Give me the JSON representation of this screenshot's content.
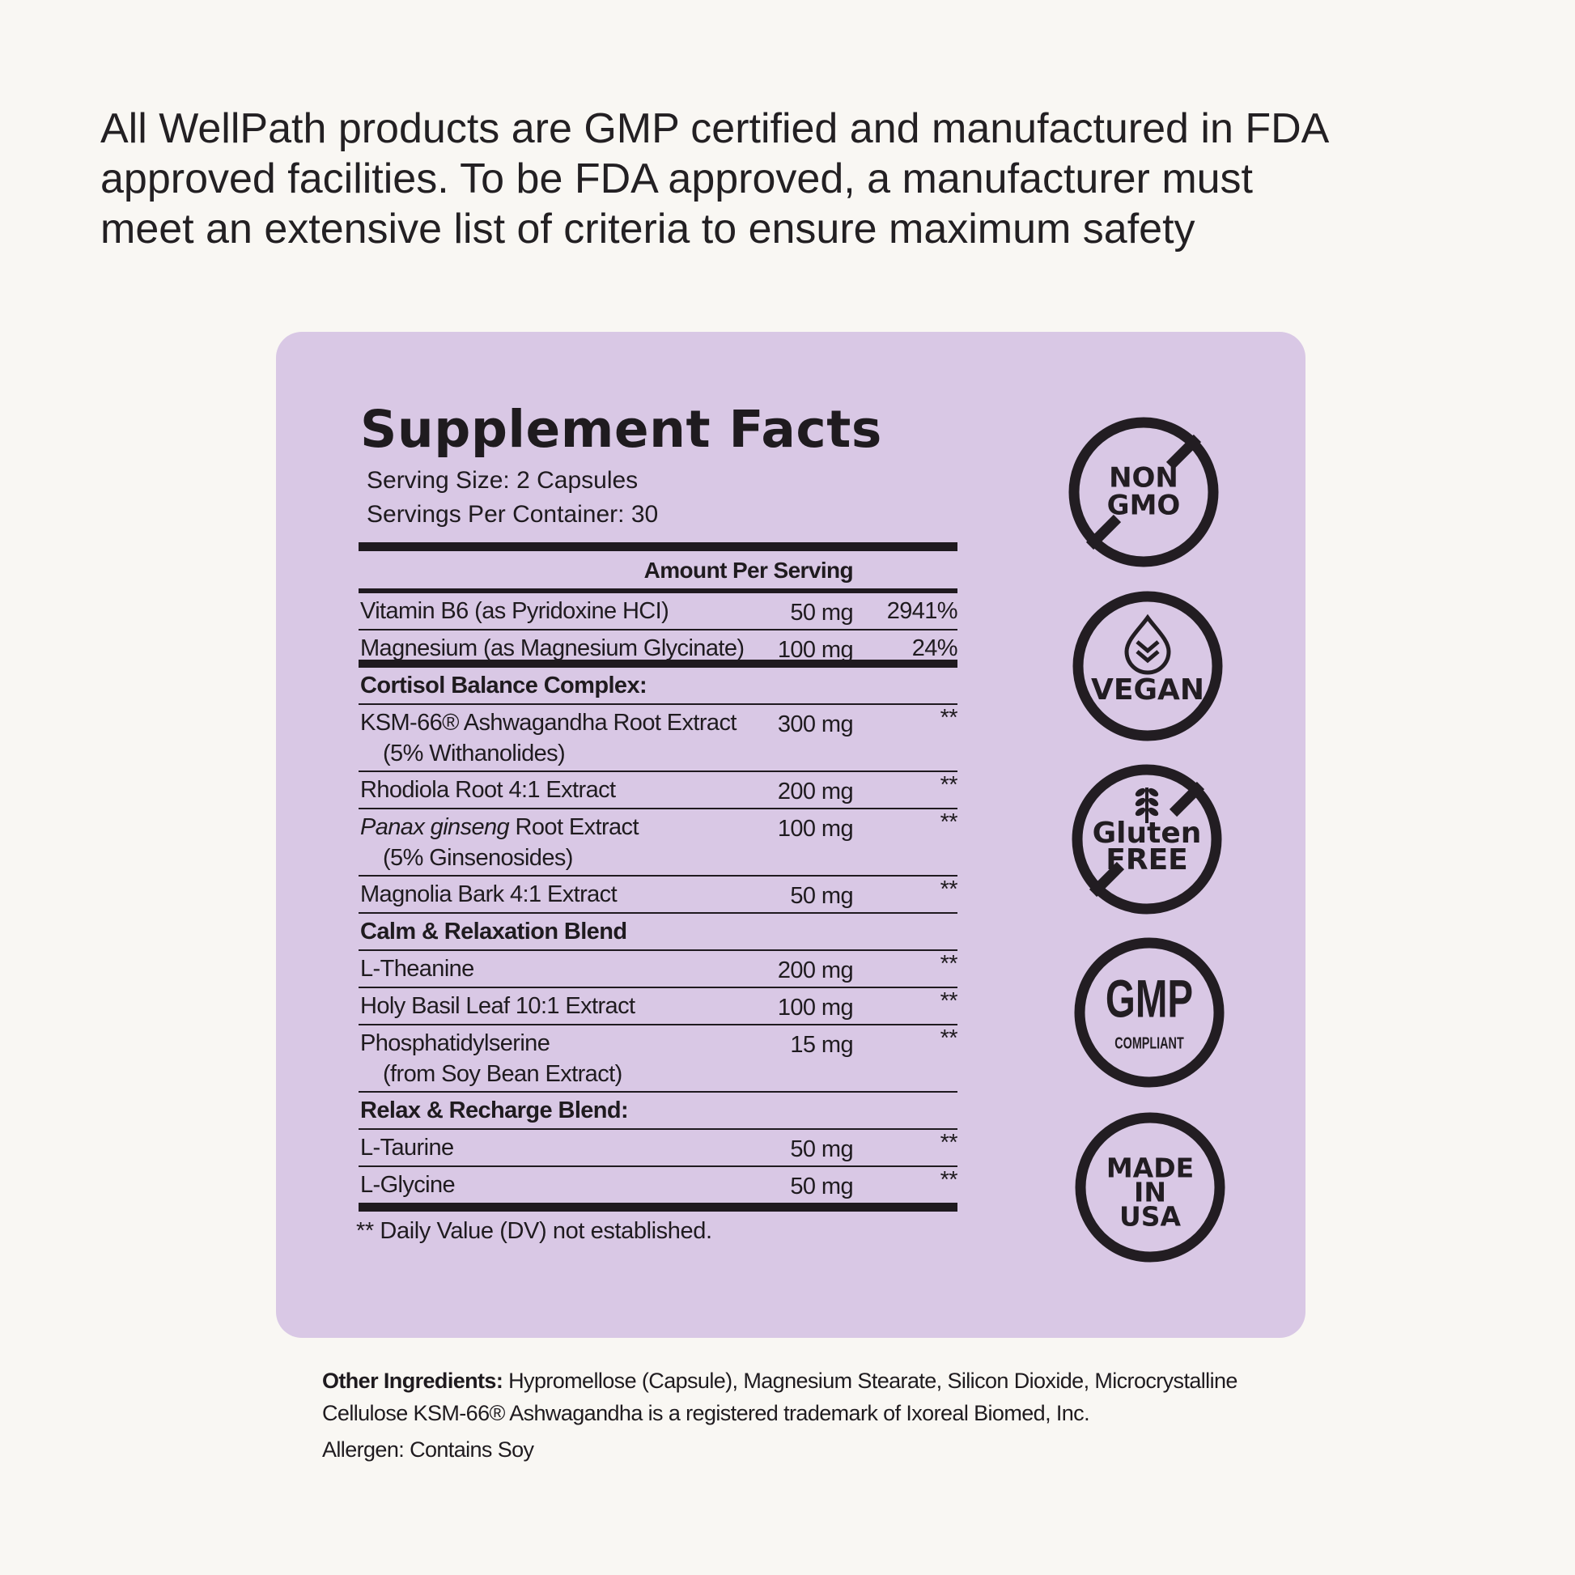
{
  "intro": {
    "lines": [
      "All WellPath products are GMP certified and manufactured in FDA",
      "approved facilities. To be FDA approved, a manufacturer must",
      "meet an extensive list of criteria to ensure maximum safety"
    ]
  },
  "facts": {
    "title": "Supplement Facts",
    "serving_size": "Serving Size: 2 Capsules",
    "servings_per_container": "Servings Per Container: 30",
    "amount_header": "Amount Per Serving",
    "rows": [
      {
        "name": "Vitamin B6 (as Pyridoxine HCI)",
        "amount": "50 mg",
        "dv": "2941%"
      },
      {
        "name": "Magnesium  (as Magnesium Glycinate)",
        "amount": "100 mg",
        "dv": "24%"
      }
    ],
    "blends": [
      {
        "name": "Cortisol Balance Complex:",
        "items": [
          {
            "name": "KSM-66® Ashwagandha Root Extract",
            "note": "(5% Withanolides)",
            "amount": "300 mg",
            "dv": "**"
          },
          {
            "name": "Rhodiola Root 4:1 Extract",
            "amount": "200 mg",
            "dv": "**"
          },
          {
            "name_italic": "Panax ginseng",
            "name": "Root Extract",
            "note": "(5% Ginsenosides)",
            "amount": "100 mg",
            "dv": "**"
          },
          {
            "name": "Magnolia Bark 4:1 Extract",
            "amount": "50 mg",
            "dv": "**"
          }
        ]
      },
      {
        "name": "Calm & Relaxation Blend",
        "items": [
          {
            "name": "L-Theanine",
            "amount": "200 mg",
            "dv": "**"
          },
          {
            "name": "Holy Basil Leaf 10:1 Extract",
            "amount": "100 mg",
            "dv": "**"
          },
          {
            "name": "Phosphatidylserine",
            "note": "(from Soy Bean Extract)",
            "amount": "15 mg",
            "dv": "**"
          }
        ]
      },
      {
        "name": "Relax & Recharge Blend:",
        "items": [
          {
            "name": "L-Taurine",
            "amount": "50 mg",
            "dv": "**"
          },
          {
            "name": "L-Glycine",
            "amount": "50 mg",
            "dv": "**"
          }
        ]
      }
    ],
    "footnote": "** Daily Value (DV) not established."
  },
  "badges": [
    {
      "lines": [
        "NON",
        "GMO"
      ]
    },
    {
      "lines": [
        "VEGAN"
      ]
    },
    {
      "lines": [
        "Gluten",
        "FREE"
      ]
    },
    {
      "lines": [
        "GMP",
        "COMPLIANT"
      ]
    },
    {
      "lines": [
        "MADE",
        "IN",
        "USA"
      ]
    }
  ],
  "other_ingredients": {
    "label": "Other Ingredients:",
    "text": "Hypromellose (Capsule), Magnesium Stearate, Silicon Dioxide, Microcrystalline Cellulose KSM-66® Ashwagandha is a registered trademark of Ixoreal Biomed, Inc.",
    "allergen": "Allergen: Contains Soy"
  }
}
